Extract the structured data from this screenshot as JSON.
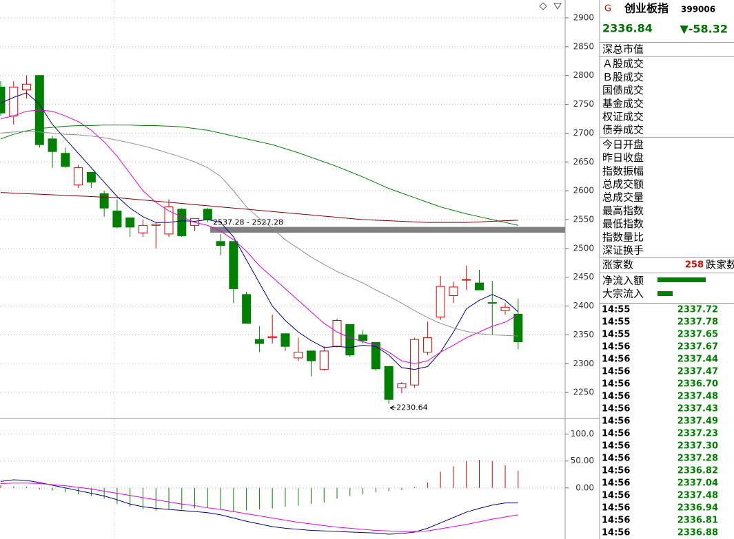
{
  "chart_data": [
    {
      "type": "candlestick",
      "open": [
        2780,
        2730,
        2775,
        2800,
        2690,
        2665,
        2610,
        2632,
        2595,
        2565,
        2553,
        2527,
        2540,
        2525,
        2568,
        2540,
        2568,
        2512,
        2512,
        2420,
        2342,
        2345,
        2352,
        2310,
        2322,
        2290,
        2330,
        2368,
        2350,
        2337,
        2295,
        2258,
        2263,
        2320,
        2381,
        2418,
        2445,
        2440,
        2406,
        2392,
        2386
      ],
      "high": [
        2790,
        2790,
        2800,
        2800,
        2695,
        2675,
        2645,
        2632,
        2600,
        2585,
        2553,
        2550,
        2545,
        2585,
        2570,
        2552,
        2570,
        2525,
        2512,
        2425,
        2365,
        2385,
        2352,
        2345,
        2322,
        2330,
        2378,
        2368,
        2358,
        2337,
        2295,
        2268,
        2345,
        2373,
        2452,
        2442,
        2470,
        2463,
        2444,
        2405,
        2413
      ],
      "low": [
        2730,
        2715,
        2760,
        2675,
        2640,
        2640,
        2605,
        2605,
        2555,
        2535,
        2520,
        2520,
        2500,
        2520,
        2520,
        2530,
        2545,
        2488,
        2405,
        2370,
        2320,
        2335,
        2322,
        2305,
        2278,
        2288,
        2328,
        2312,
        2335,
        2288,
        2230.64,
        2249,
        2258,
        2315,
        2376,
        2405,
        2428,
        2428,
        2350,
        2385,
        2325
      ],
      "close": [
        2735,
        2780,
        2785,
        2680,
        2668,
        2642,
        2640,
        2615,
        2570,
        2537,
        2537,
        2540,
        2542,
        2572,
        2522,
        2552,
        2550,
        2505,
        2430,
        2370,
        2335,
        2347,
        2330,
        2320,
        2305,
        2322,
        2375,
        2315,
        2340,
        2291,
        2238,
        2265,
        2342,
        2345,
        2434,
        2433,
        2446,
        2428,
        2406,
        2398,
        2338
      ],
      "series": [
        {
          "color": "#000080",
          "values": [
            2752,
            2762,
            2770,
            2750,
            2715,
            2690,
            2665,
            2640,
            2615,
            2590,
            2570,
            2555,
            2545,
            2545,
            2548,
            2547,
            2550,
            2545,
            2520,
            2480,
            2440,
            2400,
            2375,
            2355,
            2340,
            2328,
            2330,
            2328,
            2332,
            2330,
            2315,
            2293,
            2290,
            2295,
            2320,
            2355,
            2395,
            2410,
            2420,
            2410,
            2390
          ]
        },
        {
          "color": "#e000e0",
          "values": [
            2725,
            2730,
            2738,
            2740,
            2738,
            2730,
            2720,
            2705,
            2685,
            2660,
            2630,
            2600,
            2580,
            2565,
            2555,
            2545,
            2540,
            2530,
            2515,
            2495,
            2470,
            2450,
            2430,
            2410,
            2390,
            2370,
            2355,
            2345,
            2338,
            2332,
            2320,
            2305,
            2300,
            2305,
            2320,
            2332,
            2345,
            2355,
            2365,
            2372,
            2385
          ]
        },
        {
          "color": "#909090",
          "values": [
            2700,
            2702,
            2703,
            2702,
            2700,
            2698,
            2697,
            2695,
            2692,
            2688,
            2683,
            2678,
            2672,
            2665,
            2658,
            2650,
            2640,
            2625,
            2600,
            2572,
            2552,
            2535,
            2515,
            2500,
            2485,
            2472,
            2460,
            2450,
            2440,
            2428,
            2417,
            2405,
            2392,
            2380,
            2370,
            2362,
            2356,
            2352,
            2350,
            2349,
            2348
          ]
        },
        {
          "color": "#008000",
          "values": [
            2690,
            2698,
            2704,
            2708,
            2710,
            2712,
            2713,
            2713,
            2714,
            2714,
            2714,
            2713,
            2713,
            2712,
            2711,
            2708,
            2705,
            2700,
            2695,
            2690,
            2685,
            2680,
            2673,
            2666,
            2658,
            2650,
            2642,
            2633,
            2624,
            2614,
            2604,
            2596,
            2588,
            2580,
            2572,
            2566,
            2560,
            2555,
            2550,
            2545,
            2540
          ]
        },
        {
          "color": "#800000",
          "values": [
            2597,
            2596,
            2595,
            2594,
            2593,
            2592,
            2591,
            2590,
            2589,
            2588,
            2586,
            2584,
            2582,
            2580,
            2578,
            2576,
            2574,
            2572,
            2570,
            2568,
            2566,
            2564,
            2562,
            2560,
            2558,
            2556,
            2554,
            2552,
            2550,
            2549,
            2548,
            2547,
            2546,
            2545,
            2545,
            2545,
            2545,
            2546,
            2547,
            2548,
            2549
          ]
        }
      ],
      "up_color": "#e00000",
      "down_color": "#008000",
      "ylim": [
        2206,
        2931
      ],
      "yticks": [
        2250,
        2300,
        2350,
        2400,
        2450,
        2500,
        2550,
        2600,
        2650,
        2700,
        2750,
        2800,
        2850,
        2900
      ],
      "grid": true,
      "band": [
        2527.28,
        2537.28
      ],
      "band_label": "2537.28 - 2527.28",
      "low_label": "2230.64"
    },
    {
      "type": "macd",
      "values": [
        5,
        3,
        2,
        -3,
        -5,
        -8,
        -12,
        -15,
        -20,
        -30,
        -35,
        -40,
        -42,
        -40,
        -40,
        -38,
        -36,
        -40,
        -45,
        -42,
        -40,
        -38,
        -35,
        -33,
        -30,
        -27,
        -20,
        -15,
        -12,
        -8,
        -6,
        -4,
        2,
        10,
        30,
        40,
        50,
        52,
        50,
        42,
        32
      ],
      "series": [
        {
          "color": "#000080",
          "values": [
            12,
            15,
            14,
            10,
            5,
            0,
            -5,
            -10,
            -15,
            -22,
            -30,
            -35,
            -38,
            -40,
            -42,
            -44,
            -46,
            -50,
            -56,
            -62,
            -67,
            -72,
            -75,
            -77,
            -79,
            -80,
            -81,
            -82,
            -83,
            -84,
            -86,
            -85,
            -82,
            -75,
            -65,
            -55,
            -45,
            -38,
            -32,
            -28,
            -28
          ]
        },
        {
          "color": "#e000e0",
          "values": [
            8,
            9,
            9,
            8,
            6,
            4,
            1,
            -2,
            -6,
            -10,
            -14,
            -18,
            -22,
            -26,
            -30,
            -33,
            -37,
            -40,
            -44,
            -48,
            -52,
            -56,
            -60,
            -64,
            -67,
            -70,
            -73,
            -75,
            -77,
            -79,
            -80,
            -81,
            -81,
            -80,
            -76,
            -72,
            -68,
            -63,
            -58,
            -54,
            -50
          ]
        }
      ],
      "up_color": "#e00000",
      "down_color": "#008000",
      "ylim": [
        -95,
        129
      ],
      "yticks": [
        {
          "value": 0,
          "label": "0.00"
        },
        {
          "value": 50,
          "label": "50.00"
        },
        {
          "value": 100,
          "label": "100.0"
        }
      ],
      "grid": true
    }
  ],
  "quote_panel": {
    "flag": "G",
    "name": "创业板指",
    "code": "399006",
    "price": "2336.84",
    "change": "▼-58.32",
    "groups": [
      [
        "深总市值"
      ],
      [
        "Ａ股成交",
        "Ｂ股成交",
        "国债成交",
        "基金成交",
        "权证成交",
        "债券成交"
      ],
      [
        "今日开盘",
        "昨日收盘",
        "指数振幅",
        "总成交额",
        "总成交量",
        "最高指数",
        "最低指数",
        "指数量比",
        "深证换手"
      ]
    ],
    "advance_label": "涨家数",
    "advance_count": "258",
    "decline_label": "跌家数",
    "flow_labels": [
      "净流入额",
      "大宗流入"
    ],
    "ticks": [
      {
        "time": "14:55",
        "price": "2337.72"
      },
      {
        "time": "14:55",
        "price": "2337.78"
      },
      {
        "time": "14:55",
        "price": "2337.65"
      },
      {
        "time": "14:56",
        "price": "2337.67"
      },
      {
        "time": "14:56",
        "price": "2337.44"
      },
      {
        "time": "14:56",
        "price": "2337.47"
      },
      {
        "time": "14:56",
        "price": "2336.70"
      },
      {
        "time": "14:56",
        "price": "2337.48"
      },
      {
        "time": "14:56",
        "price": "2337.43"
      },
      {
        "time": "14:56",
        "price": "2337.49"
      },
      {
        "time": "14:56",
        "price": "2337.23"
      },
      {
        "time": "14:56",
        "price": "2337.30"
      },
      {
        "time": "14:56",
        "price": "2337.28"
      },
      {
        "time": "14:56",
        "price": "2336.82"
      },
      {
        "time": "14:56",
        "price": "2337.04"
      },
      {
        "time": "14:56",
        "price": "2337.48"
      },
      {
        "time": "14:56",
        "price": "2336.94"
      },
      {
        "time": "14:56",
        "price": "2336.81"
      },
      {
        "time": "14:56",
        "price": "2336.88"
      }
    ]
  }
}
